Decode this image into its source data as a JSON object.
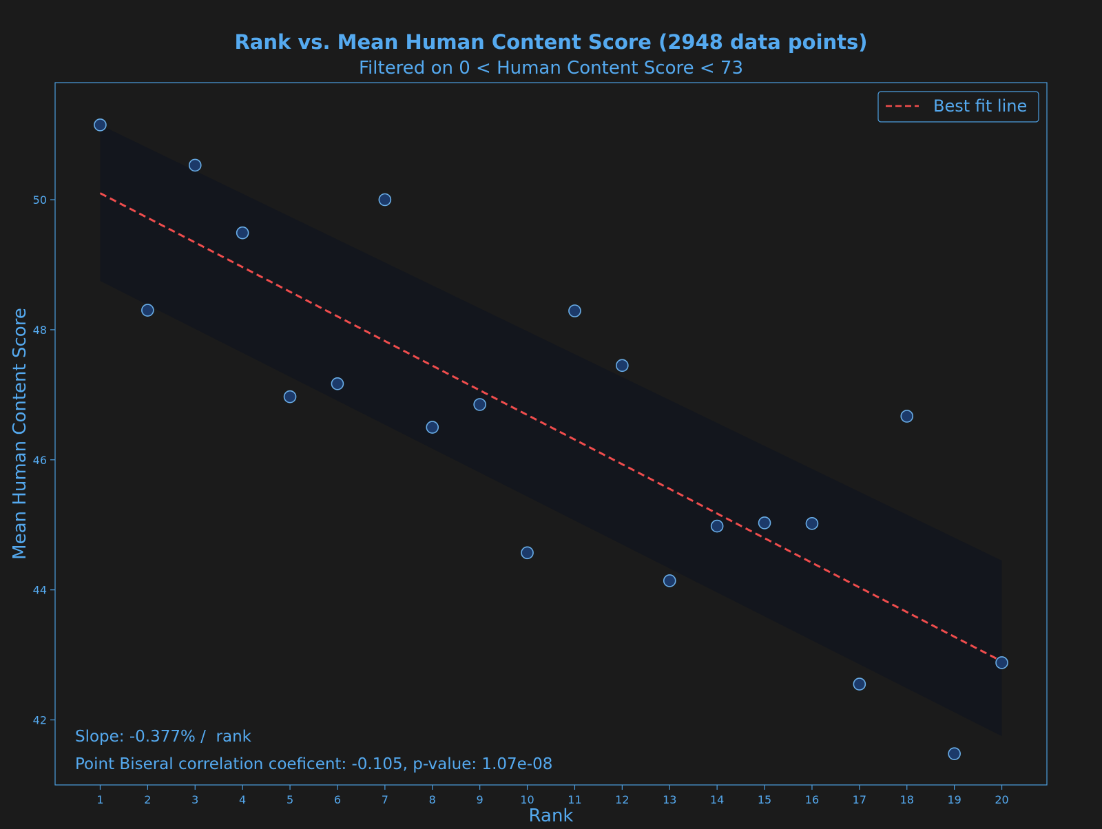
{
  "chart_data": {
    "type": "scatter",
    "title": "Rank vs. Mean Human Content Score (2948 data points)",
    "subtitle": "Filtered on 0 < Human Content Score < 73",
    "xlabel": "Rank",
    "ylabel": "Mean Human Content Score",
    "xlim": [
      0.05,
      20.95
    ],
    "ylim": [
      41.0,
      51.8
    ],
    "x_ticks": [
      1,
      2,
      3,
      4,
      5,
      6,
      7,
      8,
      9,
      10,
      11,
      12,
      13,
      14,
      15,
      16,
      17,
      18,
      19,
      20
    ],
    "y_ticks": [
      42,
      44,
      46,
      48,
      50
    ],
    "grid": false,
    "legend_position": "top-right",
    "legend": [
      "Best fit line"
    ],
    "series": [
      {
        "x": [
          1,
          2,
          3,
          4,
          5,
          6,
          7,
          8,
          9,
          10,
          11,
          12,
          13,
          14,
          15,
          16,
          17,
          18,
          19,
          20
        ],
        "y": [
          51.15,
          48.3,
          50.53,
          49.49,
          46.97,
          47.17,
          50.0,
          46.5,
          46.85,
          44.57,
          48.29,
          47.45,
          44.14,
          44.98,
          45.03,
          45.02,
          42.55,
          46.67,
          41.48,
          42.88
        ]
      },
      {
        "name": "Best fit line",
        "type": "line",
        "x": [
          1,
          20
        ],
        "y": [
          50.1,
          42.9
        ]
      }
    ],
    "confidence_band": {
      "x": [
        1,
        20
      ],
      "upper": [
        51.15,
        44.45
      ],
      "lower": [
        48.75,
        41.75
      ]
    },
    "annotations": [
      "Slope: -0.377% /  rank",
      "Point Biseral correlation coeficent: -0.105, p-value: 1.07e-08"
    ],
    "colors": {
      "background": "#1b1b1b",
      "text": "#55aaf0",
      "axes": "#4d9ee0",
      "marker_fill": "#1c3a6a",
      "marker_edge": "#6aaee8",
      "fit_line": "#f04d4d",
      "band": "#13161d"
    }
  }
}
